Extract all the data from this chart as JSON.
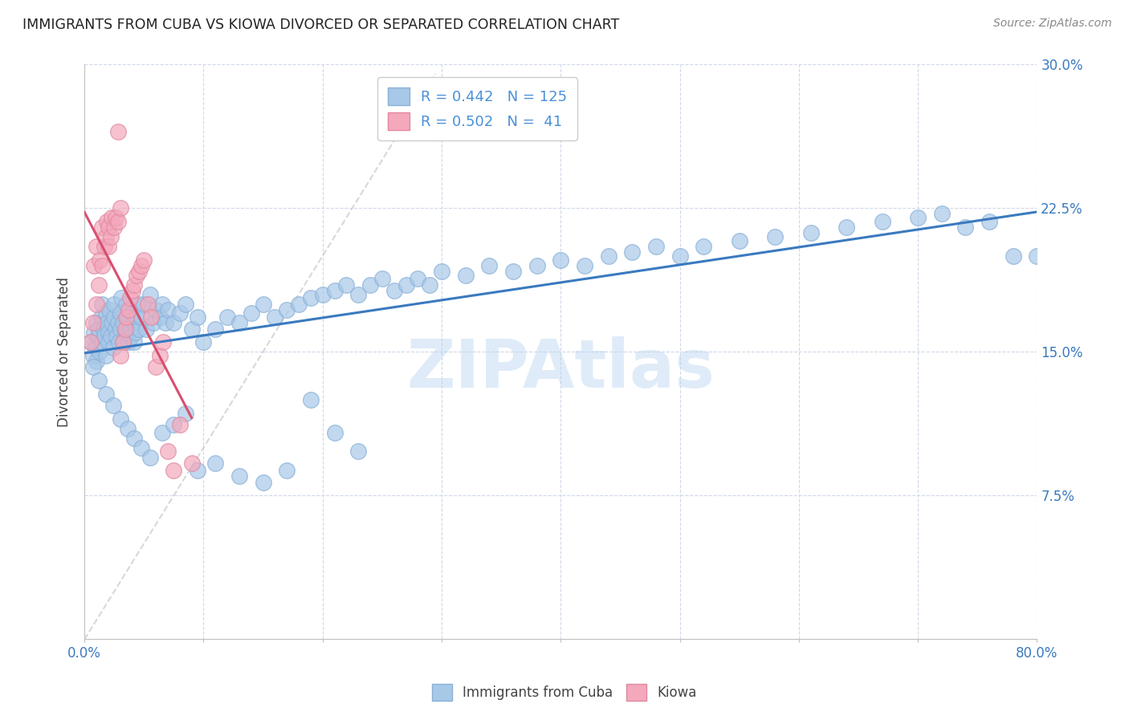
{
  "title": "IMMIGRANTS FROM CUBA VS KIOWA DIVORCED OR SEPARATED CORRELATION CHART",
  "source": "Source: ZipAtlas.com",
  "xlabel_label": "Immigrants from Cuba",
  "ylabel_label": "Divorced or Separated",
  "x_min": 0.0,
  "x_max": 0.8,
  "y_min": 0.0,
  "y_max": 0.3,
  "x_tick_labels_left": [
    "0.0%"
  ],
  "x_tick_labels_right": [
    "80.0%"
  ],
  "y_ticks": [
    0.0,
    0.075,
    0.15,
    0.225,
    0.3
  ],
  "y_tick_labels": [
    "",
    "7.5%",
    "15.0%",
    "22.5%",
    "30.0%"
  ],
  "blue_color": "#a8c8e8",
  "pink_color": "#f4a8bc",
  "blue_line_color": "#3a7abf",
  "pink_line_color": "#d94f6e",
  "diagonal_color": "#c8c8c8",
  "R_blue": 0.442,
  "N_blue": 125,
  "R_pink": 0.502,
  "N_pink": 41,
  "legend_color": "#4a90d9",
  "watermark": "ZIPAtlas",
  "blue_scatter_x": [
    0.005,
    0.007,
    0.008,
    0.009,
    0.01,
    0.01,
    0.011,
    0.012,
    0.013,
    0.014,
    0.015,
    0.015,
    0.016,
    0.017,
    0.018,
    0.018,
    0.019,
    0.02,
    0.02,
    0.021,
    0.022,
    0.023,
    0.024,
    0.025,
    0.025,
    0.026,
    0.027,
    0.028,
    0.029,
    0.03,
    0.03,
    0.031,
    0.032,
    0.033,
    0.034,
    0.035,
    0.036,
    0.037,
    0.038,
    0.039,
    0.04,
    0.041,
    0.042,
    0.043,
    0.044,
    0.045,
    0.046,
    0.048,
    0.05,
    0.052,
    0.055,
    0.058,
    0.06,
    0.063,
    0.065,
    0.068,
    0.07,
    0.075,
    0.08,
    0.085,
    0.09,
    0.095,
    0.1,
    0.11,
    0.12,
    0.13,
    0.14,
    0.15,
    0.16,
    0.17,
    0.18,
    0.19,
    0.2,
    0.21,
    0.22,
    0.23,
    0.24,
    0.25,
    0.26,
    0.27,
    0.28,
    0.29,
    0.3,
    0.32,
    0.34,
    0.36,
    0.38,
    0.4,
    0.42,
    0.44,
    0.46,
    0.48,
    0.5,
    0.52,
    0.55,
    0.58,
    0.61,
    0.64,
    0.67,
    0.7,
    0.72,
    0.74,
    0.76,
    0.78,
    0.8,
    0.007,
    0.012,
    0.018,
    0.024,
    0.03,
    0.036,
    0.042,
    0.048,
    0.055,
    0.065,
    0.075,
    0.085,
    0.095,
    0.11,
    0.13,
    0.15,
    0.17,
    0.19,
    0.21,
    0.23
  ],
  "blue_scatter_y": [
    0.155,
    0.148,
    0.16,
    0.152,
    0.165,
    0.145,
    0.158,
    0.162,
    0.15,
    0.168,
    0.155,
    0.175,
    0.162,
    0.158,
    0.17,
    0.148,
    0.165,
    0.16,
    0.155,
    0.172,
    0.158,
    0.165,
    0.152,
    0.168,
    0.175,
    0.162,
    0.158,
    0.165,
    0.155,
    0.17,
    0.162,
    0.178,
    0.165,
    0.155,
    0.16,
    0.175,
    0.168,
    0.155,
    0.162,
    0.158,
    0.17,
    0.165,
    0.155,
    0.16,
    0.168,
    0.175,
    0.162,
    0.168,
    0.175,
    0.162,
    0.18,
    0.165,
    0.172,
    0.168,
    0.175,
    0.165,
    0.172,
    0.165,
    0.17,
    0.175,
    0.162,
    0.168,
    0.155,
    0.162,
    0.168,
    0.165,
    0.17,
    0.175,
    0.168,
    0.172,
    0.175,
    0.178,
    0.18,
    0.182,
    0.185,
    0.18,
    0.185,
    0.188,
    0.182,
    0.185,
    0.188,
    0.185,
    0.192,
    0.19,
    0.195,
    0.192,
    0.195,
    0.198,
    0.195,
    0.2,
    0.202,
    0.205,
    0.2,
    0.205,
    0.208,
    0.21,
    0.212,
    0.215,
    0.218,
    0.22,
    0.222,
    0.215,
    0.218,
    0.2,
    0.2,
    0.142,
    0.135,
    0.128,
    0.122,
    0.115,
    0.11,
    0.105,
    0.1,
    0.095,
    0.108,
    0.112,
    0.118,
    0.088,
    0.092,
    0.085,
    0.082,
    0.088,
    0.125,
    0.108,
    0.098
  ],
  "pink_scatter_x": [
    0.005,
    0.007,
    0.008,
    0.01,
    0.01,
    0.012,
    0.013,
    0.015,
    0.015,
    0.017,
    0.018,
    0.019,
    0.02,
    0.02,
    0.022,
    0.023,
    0.025,
    0.026,
    0.028,
    0.03,
    0.03,
    0.032,
    0.034,
    0.035,
    0.037,
    0.038,
    0.04,
    0.042,
    0.044,
    0.046,
    0.048,
    0.05,
    0.053,
    0.056,
    0.06,
    0.063,
    0.066,
    0.07,
    0.075,
    0.08,
    0.09
  ],
  "pink_scatter_y": [
    0.155,
    0.165,
    0.195,
    0.175,
    0.205,
    0.185,
    0.198,
    0.195,
    0.215,
    0.205,
    0.21,
    0.218,
    0.205,
    0.215,
    0.21,
    0.22,
    0.215,
    0.22,
    0.218,
    0.225,
    0.148,
    0.155,
    0.162,
    0.168,
    0.172,
    0.178,
    0.182,
    0.185,
    0.19,
    0.192,
    0.195,
    0.198,
    0.175,
    0.168,
    0.142,
    0.148,
    0.155,
    0.098,
    0.088,
    0.112,
    0.092
  ],
  "pink_outlier_x": [
    0.028
  ],
  "pink_outlier_y": [
    0.265
  ]
}
